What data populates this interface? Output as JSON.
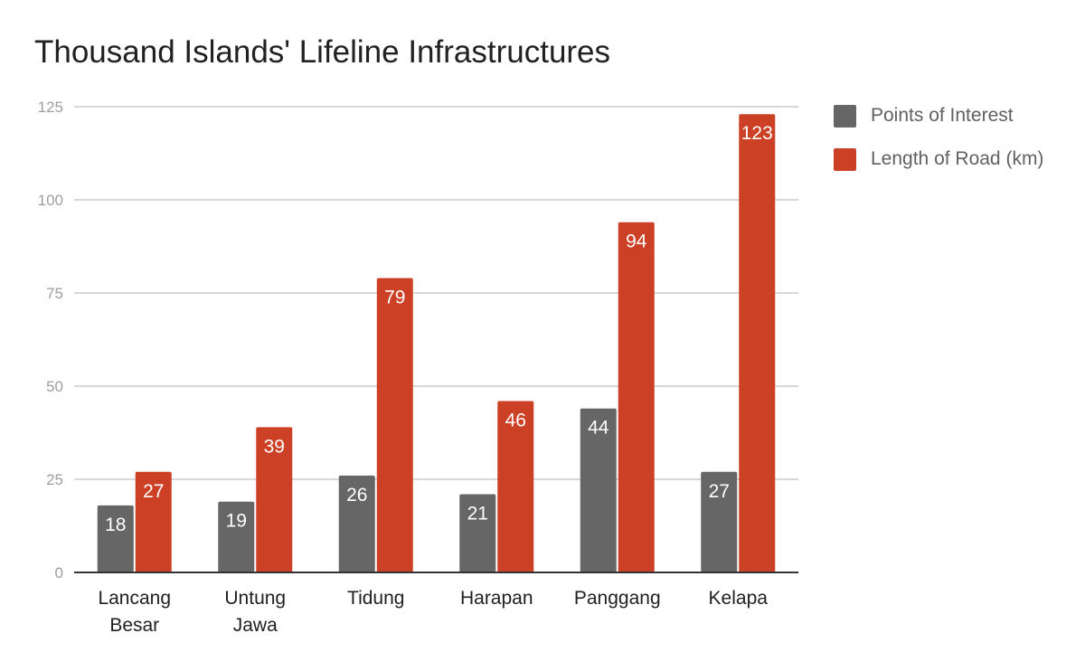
{
  "chart_data": {
    "type": "bar",
    "title": "Thousand Islands' Lifeline Infrastructures",
    "categories": [
      [
        "Lancang",
        "Besar"
      ],
      [
        "Untung",
        "Jawa"
      ],
      [
        "Tidung"
      ],
      [
        "Harapan"
      ],
      [
        "Panggang"
      ],
      [
        "Kelapa"
      ]
    ],
    "series": [
      {
        "name": "Points of Interest",
        "color": "#666666",
        "values": [
          18,
          19,
          26,
          21,
          44,
          27
        ]
      },
      {
        "name": "Length of Road (km)",
        "color": "#cc4125",
        "values": [
          27,
          39,
          79,
          46,
          94,
          123
        ]
      }
    ],
    "ylim": [
      0,
      125
    ],
    "yticks": [
      0,
      25,
      50,
      75,
      100,
      125
    ],
    "grid": true,
    "legend_position": "right",
    "xlabel": "",
    "ylabel": ""
  }
}
